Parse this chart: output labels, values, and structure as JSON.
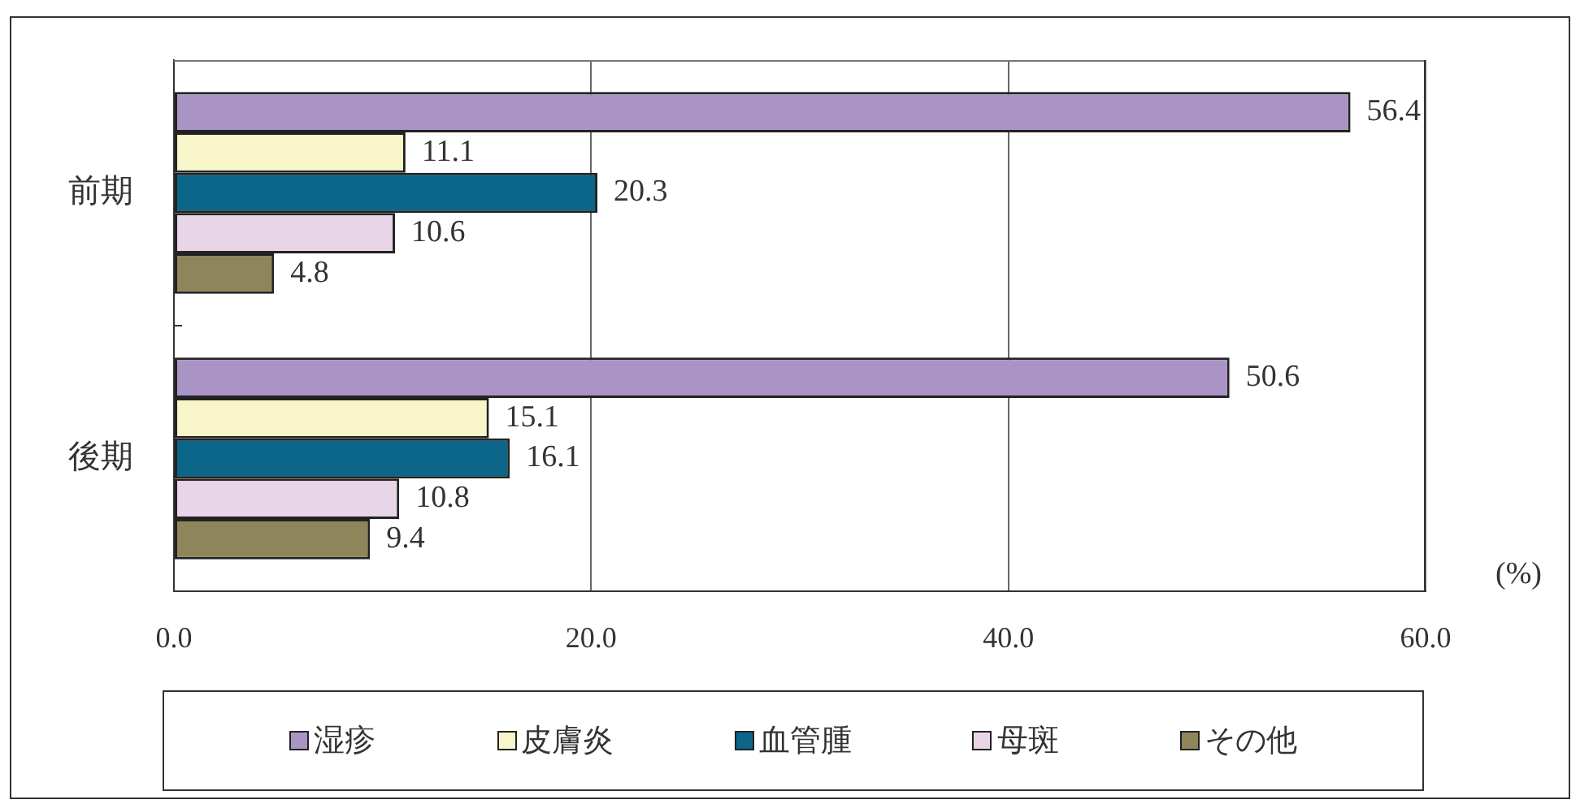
{
  "chart_data": {
    "type": "bar",
    "orientation": "horizontal",
    "categories": [
      "前期",
      "後期"
    ],
    "series": [
      {
        "name": "湿疹",
        "color": "#aa94c6",
        "values": [
          56.4,
          50.6
        ]
      },
      {
        "name": "皮膚炎",
        "color": "#f7f5c9",
        "values": [
          11.1,
          15.1
        ]
      },
      {
        "name": "血管腫",
        "color": "#0b6689",
        "values": [
          20.3,
          16.1
        ]
      },
      {
        "name": "母斑",
        "color": "#e8d5e8",
        "values": [
          10.6,
          10.8
        ]
      },
      {
        "name": "その他",
        "color": "#8e855a",
        "values": [
          4.8,
          9.4
        ]
      }
    ],
    "xlabel": "(%)",
    "xlim": [
      0,
      60
    ],
    "xticks": [
      {
        "value": 0,
        "label": "0.0"
      },
      {
        "value": 20,
        "label": "20.0"
      },
      {
        "value": 40,
        "label": "40.0"
      },
      {
        "value": 60,
        "label": "60.0"
      }
    ],
    "grid": "x",
    "legend": "bottom",
    "data_labels": true
  }
}
